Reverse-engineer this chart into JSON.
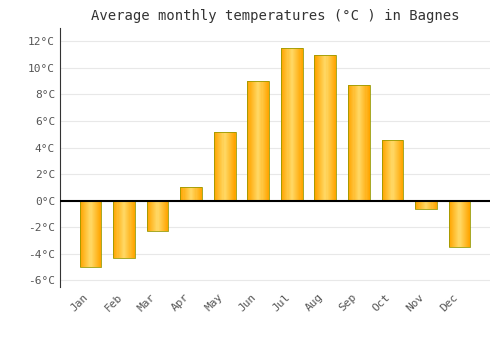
{
  "title": "Average monthly temperatures (°C ) in Bagnes",
  "months": [
    "Jan",
    "Feb",
    "Mar",
    "Apr",
    "May",
    "Jun",
    "Jul",
    "Aug",
    "Sep",
    "Oct",
    "Nov",
    "Dec"
  ],
  "values": [
    -5.0,
    -4.3,
    -2.3,
    1.0,
    5.2,
    9.0,
    11.5,
    11.0,
    8.7,
    4.6,
    -0.6,
    -3.5
  ],
  "bar_color_light": "#FFD966",
  "bar_color_main": "#FFA500",
  "bar_color_dark": "#CC8400",
  "bar_edge_color": "#999900",
  "ylim": [
    -6.5,
    13.0
  ],
  "yticks": [
    -6,
    -4,
    -2,
    0,
    2,
    4,
    6,
    8,
    10,
    12
  ],
  "ytick_labels": [
    "-6°C",
    "-4°C",
    "-2°C",
    "0°C",
    "2°C",
    "4°C",
    "6°C",
    "8°C",
    "10°C",
    "12°C"
  ],
  "background_color": "#ffffff",
  "grid_color": "#e8e8e8",
  "title_fontsize": 10,
  "tick_fontsize": 8,
  "zero_line_color": "#000000",
  "bar_width": 0.65,
  "left_spine_color": "#333333"
}
